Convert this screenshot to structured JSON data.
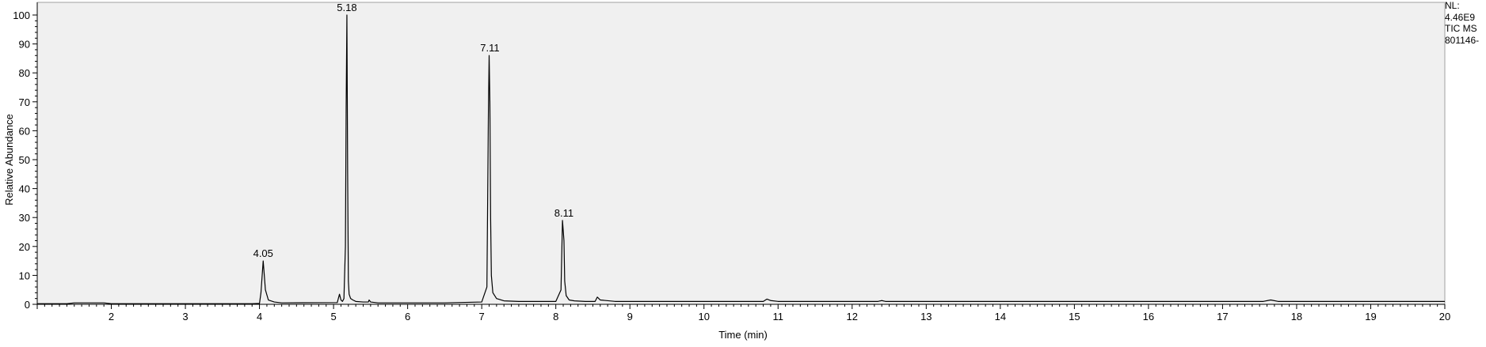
{
  "chart_data": {
    "type": "line",
    "title": "",
    "xlabel": "Time (min)",
    "ylabel": "Relative Abundance",
    "xlim": [
      1.0,
      20.0
    ],
    "ylim": [
      0,
      100
    ],
    "xticks": [
      2,
      3,
      4,
      5,
      6,
      7,
      8,
      9,
      10,
      11,
      12,
      13,
      14,
      15,
      16,
      17,
      18,
      19,
      20
    ],
    "yticks": [
      0,
      10,
      20,
      30,
      40,
      50,
      60,
      70,
      80,
      90,
      100
    ],
    "grid": false,
    "background": "#f0f0f0",
    "line_color": "#000000",
    "peak_labels": [
      {
        "label": "4.05",
        "x": 4.05,
        "y": 15
      },
      {
        "label": "5.18",
        "x": 5.18,
        "y": 100
      },
      {
        "label": "7.11",
        "x": 7.11,
        "y": 86
      },
      {
        "label": "8.11",
        "x": 8.11,
        "y": 29
      }
    ],
    "series": [
      {
        "x": [
          1.0,
          1.4,
          1.5,
          1.9,
          2.0,
          3.9,
          4.0,
          4.02,
          4.05,
          4.08,
          4.12,
          4.2,
          4.3,
          5.05,
          5.08,
          5.1,
          5.12,
          5.14,
          5.16,
          5.17,
          5.18,
          5.19,
          5.2,
          5.21,
          5.23,
          5.26,
          5.3,
          5.4,
          5.47,
          5.48,
          5.5,
          5.6,
          6.5,
          7.0,
          7.07,
          7.09,
          7.1,
          7.11,
          7.12,
          7.13,
          7.15,
          7.2,
          7.3,
          7.5,
          8.0,
          8.07,
          8.09,
          8.11,
          8.12,
          8.14,
          8.18,
          8.25,
          8.4,
          8.53,
          8.56,
          8.6,
          8.8,
          9.0,
          10.8,
          10.85,
          10.9,
          11.0,
          12.35,
          12.4,
          12.45,
          17.55,
          17.65,
          17.75,
          20.0
        ],
        "values": [
          0.2,
          0.2,
          0.5,
          0.5,
          0.2,
          0.2,
          0.3,
          4.0,
          15.0,
          5.0,
          1.5,
          0.8,
          0.5,
          0.6,
          3.5,
          1.5,
          1.0,
          2.0,
          20.0,
          68.0,
          100.0,
          45.0,
          8.0,
          3.5,
          2.0,
          1.5,
          1.0,
          0.8,
          0.8,
          1.5,
          0.8,
          0.5,
          0.5,
          0.8,
          6.0,
          66.0,
          86.0,
          70.0,
          30.0,
          10.0,
          4.0,
          2.0,
          1.2,
          1.0,
          1.0,
          5.0,
          29.0,
          22.0,
          8.0,
          3.0,
          1.5,
          1.2,
          1.0,
          1.0,
          2.5,
          1.5,
          1.0,
          1.0,
          1.0,
          1.8,
          1.3,
          1.0,
          1.0,
          1.3,
          1.0,
          1.0,
          1.5,
          1.0,
          1.0
        ]
      }
    ]
  },
  "nl_box": {
    "line1": "NL:",
    "line2": "4.46E9",
    "line3": "TIC  MS",
    "line4": "801146-"
  }
}
